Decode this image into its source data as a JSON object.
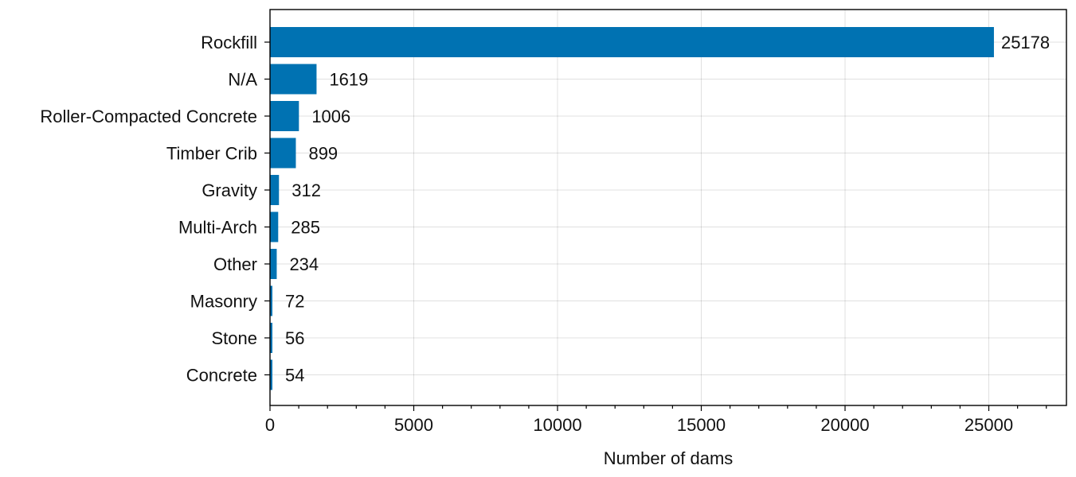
{
  "chart_data": {
    "type": "bar",
    "orientation": "horizontal",
    "categories": [
      "Rockfill",
      "N/A",
      "Roller-Compacted Concrete",
      "Timber Crib",
      "Gravity",
      "Multi-Arch",
      "Other",
      "Masonry",
      "Stone",
      "Concrete"
    ],
    "values": [
      25178,
      1619,
      1006,
      899,
      312,
      285,
      234,
      72,
      56,
      54
    ],
    "data_labels": [
      "25178",
      "1619",
      "1006",
      "899",
      "312",
      "285",
      "234",
      "72",
      "56",
      "54"
    ],
    "title": "",
    "xlabel": "Number of dams",
    "ylabel": "",
    "xlim": [
      0,
      27700
    ],
    "x_ticks": [
      0,
      5000,
      10000,
      15000,
      20000,
      25000
    ],
    "x_tick_labels": [
      "0",
      "5000",
      "10000",
      "15000",
      "20000",
      "25000"
    ],
    "x_minor_step": 1000,
    "grid": true,
    "legend": "none",
    "colors": {
      "bar": "#0072b2",
      "text": "#111111",
      "axes": "#000000"
    }
  }
}
